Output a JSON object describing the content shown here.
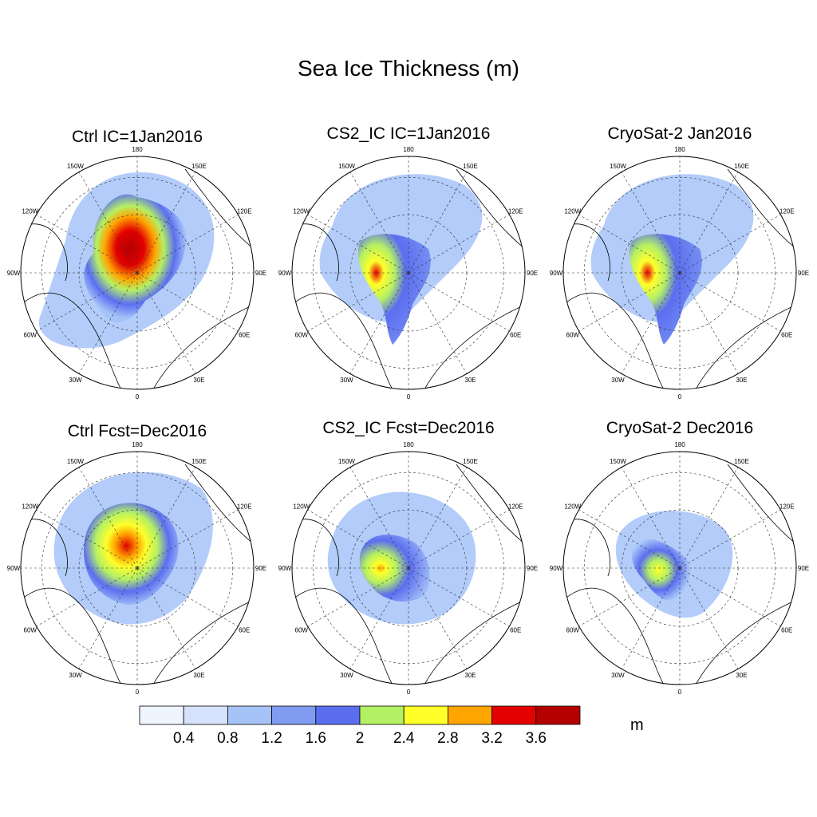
{
  "title": "Sea Ice Thickness (m)",
  "panels": [
    {
      "title": "Ctrl IC=1Jan2016"
    },
    {
      "title": "CS2_IC IC=1Jan2016"
    },
    {
      "title": "CryoSat-2 Jan2016"
    },
    {
      "title": "Ctrl Fcst=Dec2016"
    },
    {
      "title": "CS2_IC Fcst=Dec2016"
    },
    {
      "title": "CryoSat-2 Dec2016"
    }
  ],
  "longitude_labels": [
    "180",
    "150E",
    "120E",
    "90E",
    "60E",
    "30E",
    "0",
    "30W",
    "60W",
    "90W",
    "120W",
    "150W"
  ],
  "colorbar": {
    "colors": [
      "#eef5ff",
      "#d6e2fb",
      "#a6c3f8",
      "#7f9cf2",
      "#5b6ef0",
      "#b4f064",
      "#ffff2a",
      "#ffa500",
      "#e20000",
      "#b40000"
    ],
    "tick_labels": [
      "0.4",
      "0.8",
      "1.2",
      "1.6",
      "2",
      "2.4",
      "2.8",
      "3.2",
      "3.6"
    ],
    "units": "m"
  }
}
